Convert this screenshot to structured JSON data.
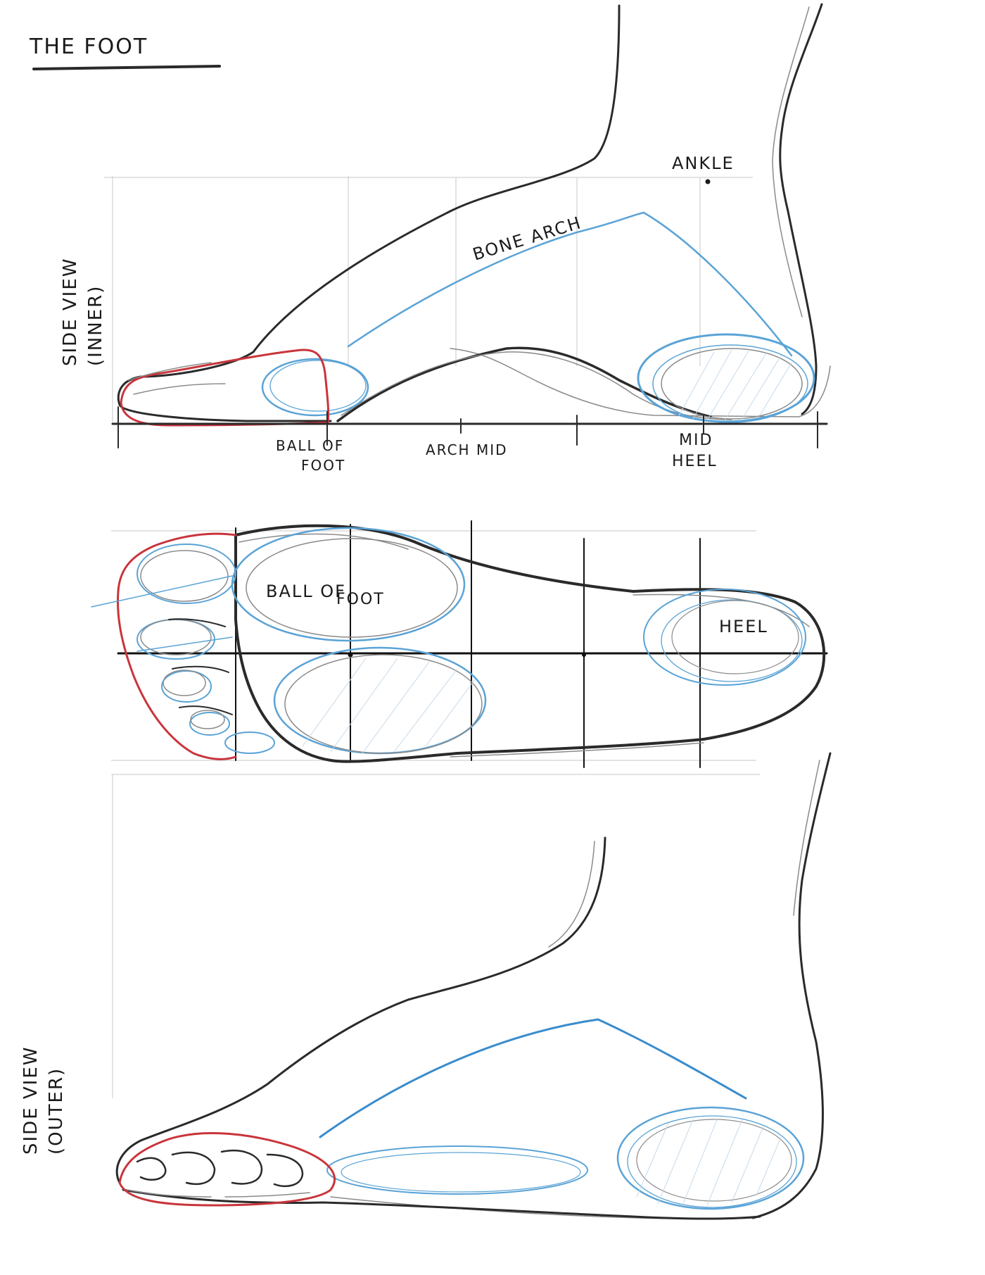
{
  "title": "THE FOOT",
  "views": {
    "side_inner": {
      "label_line1": "SIDE VIEW",
      "label_line2": "(INNER)",
      "annotations": {
        "ankle": "ANKLE",
        "bone_arch": "BONE ARCH"
      },
      "axis_labels": {
        "ball_line1": "BALL OF",
        "ball_line2": "FOOT",
        "arch_mid": "ARCH MID",
        "mid_line1": "MID",
        "mid_line2": "HEEL"
      }
    },
    "bottom": {
      "ball_line1": "BALL OF",
      "ball_line2": "FOOT",
      "heel": "HEEL"
    },
    "side_outer": {
      "label_line1": "SIDE VIEW",
      "label_line2": "(OUTER)"
    }
  },
  "colors": {
    "pencil": "#2a2a2a",
    "blue": "#5aa3d6",
    "red": "#c9343b"
  }
}
